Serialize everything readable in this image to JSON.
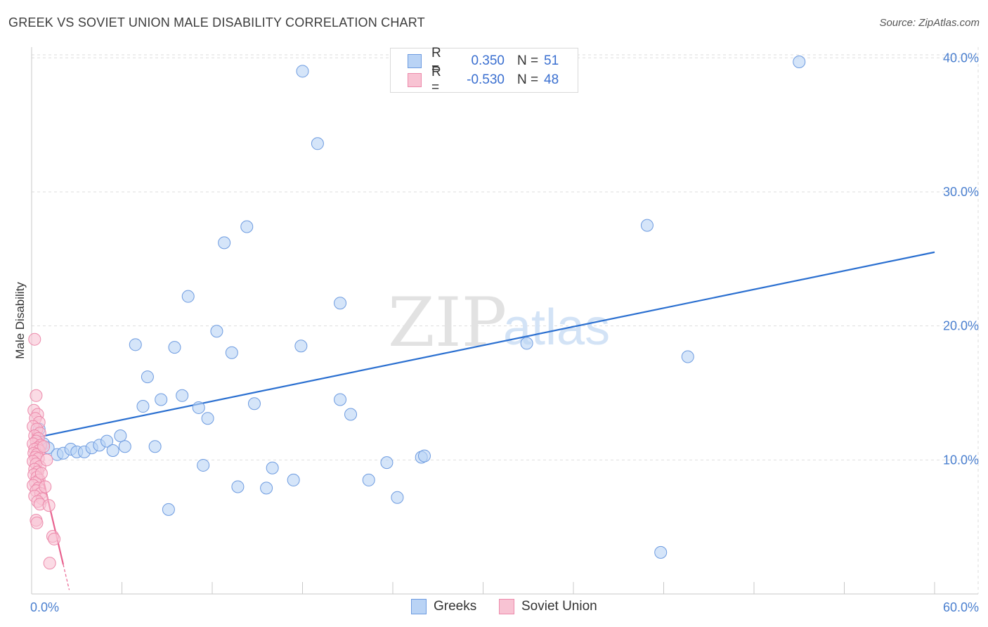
{
  "title": "GREEK VS SOVIET UNION MALE DISABILITY CORRELATION CHART",
  "source": "Source: ZipAtlas.com",
  "watermark": {
    "zip": "ZIP",
    "atlas": "atlas"
  },
  "legend_top": [
    {
      "r_label": "R =",
      "r_value": "0.350",
      "n_label": "N =",
      "n_value": "51",
      "fill": "#b9d3f5",
      "stroke": "#6d9be0"
    },
    {
      "r_label": "R =",
      "r_value": "-0.530",
      "n_label": "N =",
      "n_value": "48",
      "fill": "#f8c3d3",
      "stroke": "#ec8aab"
    }
  ],
  "legend_bottom": [
    {
      "label": "Greeks",
      "fill": "#b9d3f5",
      "stroke": "#6d9be0"
    },
    {
      "label": "Soviet Union",
      "fill": "#f8c3d3",
      "stroke": "#ec8aab"
    }
  ],
  "chart_data": {
    "type": "scatter",
    "title": "GREEK VS SOVIET UNION MALE DISABILITY CORRELATION CHART",
    "xlabel": "",
    "ylabel": "Male Disability",
    "xlim": [
      0,
      60
    ],
    "ylim": [
      0,
      40.8
    ],
    "x_tick_labels": [
      "0.0%",
      "60.0%"
    ],
    "y_ticks": [
      10,
      20,
      30,
      40
    ],
    "y_tick_labels": [
      "10.0%",
      "20.0%",
      "30.0%",
      "40.0%"
    ],
    "grid": true,
    "series": [
      {
        "name": "Greeks",
        "color": "#b9d3f5",
        "stroke": "#6d9be0",
        "line_color": "#2a6fd0",
        "trend": {
          "x": [
            0,
            60
          ],
          "y": [
            11.6,
            25.5
          ]
        },
        "points": [
          [
            0.5,
            12.3
          ],
          [
            0.8,
            11.2
          ],
          [
            1.1,
            10.9
          ],
          [
            1.7,
            10.4
          ],
          [
            2.1,
            10.5
          ],
          [
            2.6,
            10.8
          ],
          [
            3.0,
            10.6
          ],
          [
            3.5,
            10.6
          ],
          [
            4.0,
            10.9
          ],
          [
            4.5,
            11.1
          ],
          [
            5.0,
            11.4
          ],
          [
            5.4,
            10.7
          ],
          [
            5.9,
            11.8
          ],
          [
            6.2,
            11.0
          ],
          [
            6.9,
            18.6
          ],
          [
            7.4,
            14.0
          ],
          [
            7.7,
            16.2
          ],
          [
            8.2,
            11.0
          ],
          [
            8.6,
            14.5
          ],
          [
            9.1,
            6.3
          ],
          [
            9.5,
            18.4
          ],
          [
            10.0,
            14.8
          ],
          [
            10.4,
            22.2
          ],
          [
            11.1,
            13.9
          ],
          [
            11.4,
            9.6
          ],
          [
            11.7,
            13.1
          ],
          [
            12.3,
            19.6
          ],
          [
            12.8,
            26.2
          ],
          [
            13.3,
            18.0
          ],
          [
            13.7,
            8.0
          ],
          [
            14.3,
            27.4
          ],
          [
            14.8,
            14.2
          ],
          [
            15.6,
            7.9
          ],
          [
            16.0,
            9.4
          ],
          [
            17.4,
            8.5
          ],
          [
            17.9,
            18.5
          ],
          [
            18.0,
            39.0
          ],
          [
            19.0,
            33.6
          ],
          [
            20.5,
            21.7
          ],
          [
            20.5,
            14.5
          ],
          [
            21.2,
            13.4
          ],
          [
            22.4,
            8.5
          ],
          [
            23.6,
            9.8
          ],
          [
            24.3,
            7.2
          ],
          [
            25.9,
            10.2
          ],
          [
            26.1,
            10.3
          ],
          [
            32.9,
            18.7
          ],
          [
            40.9,
            27.5
          ],
          [
            41.8,
            3.1
          ],
          [
            43.6,
            17.7
          ],
          [
            51.0,
            39.7
          ]
        ]
      },
      {
        "name": "Soviet Union",
        "color": "#f8c3d3",
        "stroke": "#ec8aab",
        "line_color": "#e8628f",
        "trend": {
          "x": [
            0,
            2.1
          ],
          "y": [
            12.2,
            2.2
          ]
        },
        "trend_dashed": {
          "x": [
            2.1,
            2.5
          ],
          "y": [
            2.2,
            0.3
          ]
        },
        "points": [
          [
            0.2,
            19.0
          ],
          [
            0.3,
            14.8
          ],
          [
            0.15,
            13.7
          ],
          [
            0.4,
            13.4
          ],
          [
            0.25,
            13.1
          ],
          [
            0.5,
            12.8
          ],
          [
            0.1,
            12.5
          ],
          [
            0.35,
            12.3
          ],
          [
            0.55,
            12.0
          ],
          [
            0.2,
            11.8
          ],
          [
            0.45,
            11.6
          ],
          [
            0.3,
            11.4
          ],
          [
            0.1,
            11.2
          ],
          [
            0.6,
            11.1
          ],
          [
            0.4,
            10.9
          ],
          [
            0.2,
            10.8
          ],
          [
            0.5,
            10.7
          ],
          [
            0.15,
            10.5
          ],
          [
            0.35,
            10.4
          ],
          [
            0.25,
            10.2
          ],
          [
            0.45,
            10.1
          ],
          [
            0.1,
            9.9
          ],
          [
            0.3,
            9.7
          ],
          [
            0.55,
            9.5
          ],
          [
            0.2,
            9.3
          ],
          [
            0.4,
            9.1
          ],
          [
            0.15,
            8.9
          ],
          [
            0.35,
            8.7
          ],
          [
            0.5,
            8.5
          ],
          [
            0.25,
            8.3
          ],
          [
            0.1,
            8.1
          ],
          [
            0.45,
            7.9
          ],
          [
            0.3,
            7.7
          ],
          [
            0.6,
            7.5
          ],
          [
            0.2,
            7.3
          ],
          [
            0.7,
            7.1
          ],
          [
            0.4,
            6.9
          ],
          [
            0.55,
            6.7
          ],
          [
            1.15,
            6.6
          ],
          [
            0.3,
            5.5
          ],
          [
            0.35,
            5.3
          ],
          [
            1.4,
            4.3
          ],
          [
            1.5,
            4.1
          ],
          [
            1.2,
            2.3
          ],
          [
            0.8,
            11.0
          ],
          [
            1.0,
            10.0
          ],
          [
            0.65,
            9.0
          ],
          [
            0.9,
            8.0
          ]
        ]
      }
    ]
  }
}
